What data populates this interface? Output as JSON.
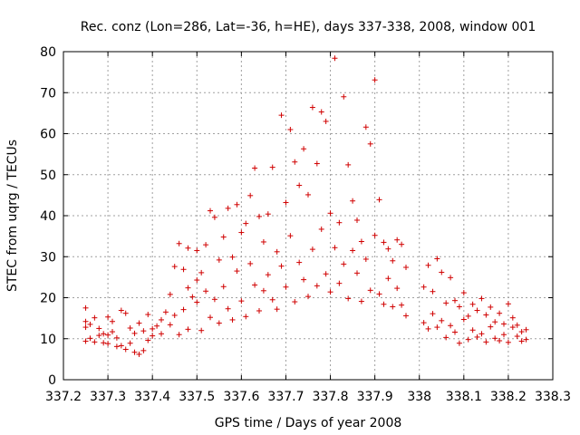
{
  "chart_data": {
    "type": "scatter",
    "title": "Rec. conz (Lon=286, Lat=-36, h=HE), days 337-338, 2008, window 001",
    "xlabel": "GPS time / Days of year 2008",
    "ylabel": "STEC from uqrg / TECUs",
    "xlim": [
      337.2,
      338.3
    ],
    "ylim": [
      0,
      80
    ],
    "xticks": [
      "337.2",
      "337.3",
      "337.4",
      "337.5",
      "337.6",
      "337.7",
      "337.8",
      "337.9",
      "338",
      "338.1",
      "338.2",
      "338.3"
    ],
    "xtick_values": [
      337.2,
      337.3,
      337.4,
      337.5,
      337.6,
      337.7,
      337.8,
      337.9,
      338.0,
      338.1,
      338.2,
      338.3
    ],
    "yticks": [
      "0",
      "10",
      "20",
      "30",
      "40",
      "50",
      "60",
      "70",
      "80"
    ],
    "ytick_values": [
      0,
      10,
      20,
      30,
      40,
      50,
      60,
      70,
      80
    ],
    "grid": true,
    "marker": "+",
    "color": "#d00000",
    "series": [
      {
        "x": [
          337.25,
          337.25,
          337.25,
          337.25,
          337.26,
          337.26,
          337.27,
          337.27,
          337.28,
          337.28,
          337.29,
          337.3,
          337.3,
          337.31,
          337.31,
          337.32,
          337.33,
          337.33,
          337.34,
          337.35,
          337.35,
          337.36,
          337.37,
          337.38,
          337.39,
          337.39,
          337.4,
          337.41,
          337.42,
          337.43,
          337.44,
          337.45,
          337.45,
          337.46,
          337.46,
          337.47,
          337.48,
          337.48,
          337.49,
          337.5,
          337.51,
          337.51,
          337.52,
          337.52,
          337.53,
          337.54,
          337.55,
          337.56,
          337.57,
          337.58,
          337.59,
          337.6,
          337.6,
          337.61,
          337.62,
          337.63,
          337.63,
          337.64,
          337.65,
          337.66,
          337.66,
          337.67,
          337.68,
          337.69,
          337.7,
          337.71,
          337.72,
          337.72,
          337.73,
          337.74,
          337.74,
          337.75,
          337.76,
          337.77,
          337.77,
          337.78,
          337.79,
          337.79,
          337.8,
          337.81,
          337.82,
          337.83,
          337.84,
          337.85,
          337.86,
          337.87,
          337.87,
          337.88,
          337.89,
          337.9,
          337.91,
          337.92,
          337.93,
          337.94,
          337.95,
          337.96,
          337.97,
          337.98,
          338.01,
          338.02,
          338.03,
          338.04,
          338.05,
          338.06,
          338.07,
          338.08,
          338.09,
          338.1,
          338.11,
          338.12,
          338.13,
          338.14,
          338.15,
          338.16,
          338.17,
          338.18,
          338.19,
          338.2,
          338.21,
          338.22,
          338.23,
          338.24
        ],
        "y": [
          9,
          11,
          13,
          14,
          10,
          12,
          9,
          15,
          10,
          13,
          9,
          8,
          15,
          9,
          12,
          7,
          8,
          11,
          7,
          8,
          13,
          6,
          6,
          7,
          10,
          16,
          12,
          13,
          11,
          15,
          20,
          18,
          27,
          11,
          33,
          15,
          22,
          12,
          31,
          19,
          17,
          26,
          24,
          14,
          30,
          21,
          39,
          26,
          15,
          34,
          28,
          20,
          40,
          17,
          30,
          38,
          45,
          22,
          35,
          25,
          16,
          33,
          19,
          28,
          36,
          32,
          61,
          18,
          47,
          22,
          56,
          26,
          40,
          66,
          21,
          53,
          63,
          24,
          33,
          28,
          38,
          23,
          52,
          31,
          44,
          26,
          19,
          37,
          33,
          61,
          58,
          41,
          22,
          30,
          34,
          27,
          19,
          33,
          15,
          23,
          13,
          27,
          12,
          22,
          26,
          14,
          21,
          18,
          16,
          12,
          15,
          20,
          10,
          14,
          18,
          11,
          13,
          16,
          10,
          12,
          14,
          9
        ],
        "values": [
          [
            337.25,
            17.5
          ],
          [
            337.25,
            14.2
          ],
          [
            337.25,
            12.8
          ],
          [
            337.25,
            9.4
          ],
          [
            337.26,
            13.5
          ],
          [
            337.26,
            10.1
          ],
          [
            337.27,
            15.1
          ],
          [
            337.27,
            9.2
          ],
          [
            337.28,
            12.5
          ],
          [
            337.28,
            10.8
          ],
          [
            337.29,
            11.2
          ],
          [
            337.29,
            9.0
          ],
          [
            337.3,
            15.3
          ],
          [
            337.3,
            10.9
          ],
          [
            337.3,
            8.8
          ],
          [
            337.31,
            14.2
          ],
          [
            337.31,
            11.7
          ],
          [
            337.32,
            8.1
          ],
          [
            337.32,
            10.2
          ],
          [
            337.33,
            16.9
          ],
          [
            337.33,
            8.3
          ],
          [
            337.34,
            16.2
          ],
          [
            337.34,
            7.4
          ],
          [
            337.35,
            12.6
          ],
          [
            337.35,
            8.9
          ],
          [
            337.36,
            11.3
          ],
          [
            337.36,
            6.7
          ],
          [
            337.37,
            13.8
          ],
          [
            337.37,
            6.2
          ],
          [
            337.38,
            11.9
          ],
          [
            337.38,
            7.1
          ],
          [
            337.39,
            15.9
          ],
          [
            337.39,
            9.6
          ],
          [
            337.4,
            12.4
          ],
          [
            337.4,
            10.7
          ],
          [
            337.41,
            13.1
          ],
          [
            337.42,
            14.6
          ],
          [
            337.42,
            11.2
          ],
          [
            337.43,
            16.5
          ],
          [
            337.44,
            20.8
          ],
          [
            337.44,
            13.4
          ],
          [
            337.45,
            27.6
          ],
          [
            337.45,
            15.7
          ],
          [
            337.46,
            33.2
          ],
          [
            337.46,
            11.0
          ],
          [
            337.47,
            26.9
          ],
          [
            337.47,
            17.1
          ],
          [
            337.48,
            32.1
          ],
          [
            337.48,
            22.4
          ],
          [
            337.48,
            12.3
          ],
          [
            337.49,
            20.2
          ],
          [
            337.5,
            31.5
          ],
          [
            337.5,
            24.3
          ],
          [
            337.5,
            18.9
          ],
          [
            337.51,
            26.1
          ],
          [
            337.51,
            12.0
          ],
          [
            337.52,
            32.9
          ],
          [
            337.52,
            21.6
          ],
          [
            337.53,
            41.2
          ],
          [
            337.53,
            15.2
          ],
          [
            337.54,
            39.6
          ],
          [
            337.54,
            19.6
          ],
          [
            337.55,
            29.2
          ],
          [
            337.55,
            13.8
          ],
          [
            337.56,
            34.8
          ],
          [
            337.56,
            22.7
          ],
          [
            337.57,
            41.8
          ],
          [
            337.57,
            17.3
          ],
          [
            337.58,
            29.9
          ],
          [
            337.58,
            14.6
          ],
          [
            337.59,
            42.7
          ],
          [
            337.59,
            26.5
          ],
          [
            337.6,
            35.9
          ],
          [
            337.6,
            19.2
          ],
          [
            337.61,
            38.1
          ],
          [
            337.61,
            15.4
          ],
          [
            337.62,
            44.9
          ],
          [
            337.62,
            28.3
          ],
          [
            337.63,
            51.6
          ],
          [
            337.63,
            23.1
          ],
          [
            337.64,
            39.8
          ],
          [
            337.64,
            16.8
          ],
          [
            337.65,
            33.6
          ],
          [
            337.65,
            21.7
          ],
          [
            337.66,
            40.4
          ],
          [
            337.66,
            25.6
          ],
          [
            337.67,
            51.8
          ],
          [
            337.67,
            19.5
          ],
          [
            337.68,
            31.2
          ],
          [
            337.68,
            17.2
          ],
          [
            337.69,
            64.5
          ],
          [
            337.69,
            27.7
          ],
          [
            337.7,
            43.2
          ],
          [
            337.7,
            22.6
          ],
          [
            337.71,
            61.0
          ],
          [
            337.71,
            35.1
          ],
          [
            337.72,
            53.1
          ],
          [
            337.72,
            19.0
          ],
          [
            337.73,
            47.4
          ],
          [
            337.73,
            28.6
          ],
          [
            337.74,
            56.3
          ],
          [
            337.74,
            24.4
          ],
          [
            337.75,
            45.1
          ],
          [
            337.75,
            20.3
          ],
          [
            337.76,
            66.4
          ],
          [
            337.76,
            31.8
          ],
          [
            337.77,
            52.7
          ],
          [
            337.77,
            22.9
          ],
          [
            337.78,
            65.3
          ],
          [
            337.78,
            36.7
          ],
          [
            337.79,
            63.0
          ],
          [
            337.79,
            25.8
          ],
          [
            337.8,
            40.6
          ],
          [
            337.8,
            21.4
          ],
          [
            337.81,
            78.4
          ],
          [
            337.81,
            32.2
          ],
          [
            337.82,
            38.3
          ],
          [
            337.82,
            23.5
          ],
          [
            337.83,
            69.0
          ],
          [
            337.83,
            28.2
          ],
          [
            337.84,
            52.4
          ],
          [
            337.84,
            19.8
          ],
          [
            337.85,
            43.6
          ],
          [
            337.85,
            31.5
          ],
          [
            337.86,
            38.9
          ],
          [
            337.86,
            26.0
          ],
          [
            337.87,
            33.7
          ],
          [
            337.87,
            19.1
          ],
          [
            337.88,
            61.6
          ],
          [
            337.88,
            29.4
          ],
          [
            337.89,
            57.5
          ],
          [
            337.89,
            21.8
          ],
          [
            337.9,
            73.1
          ],
          [
            337.9,
            35.2
          ],
          [
            337.91,
            43.9
          ],
          [
            337.91,
            20.9
          ],
          [
            337.92,
            33.5
          ],
          [
            337.92,
            18.4
          ],
          [
            337.93,
            31.9
          ],
          [
            337.93,
            24.7
          ],
          [
            337.94,
            29.0
          ],
          [
            337.94,
            17.8
          ],
          [
            337.95,
            34.1
          ],
          [
            337.95,
            22.3
          ],
          [
            337.96,
            33.0
          ],
          [
            337.96,
            18.2
          ],
          [
            337.97,
            27.4
          ],
          [
            337.97,
            15.6
          ],
          [
            338.01,
            22.6
          ],
          [
            338.01,
            13.9
          ],
          [
            338.02,
            27.9
          ],
          [
            338.02,
            12.4
          ],
          [
            338.03,
            21.5
          ],
          [
            338.03,
            16.1
          ],
          [
            338.04,
            29.5
          ],
          [
            338.04,
            12.8
          ],
          [
            338.05,
            26.2
          ],
          [
            338.05,
            14.4
          ],
          [
            338.06,
            18.7
          ],
          [
            338.06,
            10.3
          ],
          [
            338.07,
            24.9
          ],
          [
            338.07,
            13.2
          ],
          [
            338.08,
            19.3
          ],
          [
            338.08,
            11.6
          ],
          [
            338.09,
            17.8
          ],
          [
            338.09,
            8.9
          ],
          [
            338.1,
            21.2
          ],
          [
            338.1,
            14.7
          ],
          [
            338.11,
            15.5
          ],
          [
            338.11,
            9.8
          ],
          [
            338.12,
            18.4
          ],
          [
            338.12,
            12.1
          ],
          [
            338.13,
            16.9
          ],
          [
            338.13,
            10.4
          ],
          [
            338.14,
            19.8
          ],
          [
            338.14,
            11.2
          ],
          [
            338.15,
            15.8
          ],
          [
            338.15,
            9.2
          ],
          [
            338.16,
            17.7
          ],
          [
            338.16,
            12.9
          ],
          [
            338.17,
            14.1
          ],
          [
            338.17,
            10.1
          ],
          [
            338.18,
            16.2
          ],
          [
            338.18,
            9.5
          ],
          [
            338.19,
            13.6
          ],
          [
            338.19,
            11.0
          ],
          [
            338.2,
            18.5
          ],
          [
            338.2,
            9.1
          ],
          [
            338.21,
            12.8
          ],
          [
            338.21,
            15.1
          ],
          [
            338.22,
            10.6
          ],
          [
            338.22,
            13.3
          ],
          [
            338.23,
            11.7
          ],
          [
            338.23,
            9.4
          ],
          [
            338.24,
            12.2
          ],
          [
            338.24,
            9.8
          ]
        ]
      }
    ]
  }
}
